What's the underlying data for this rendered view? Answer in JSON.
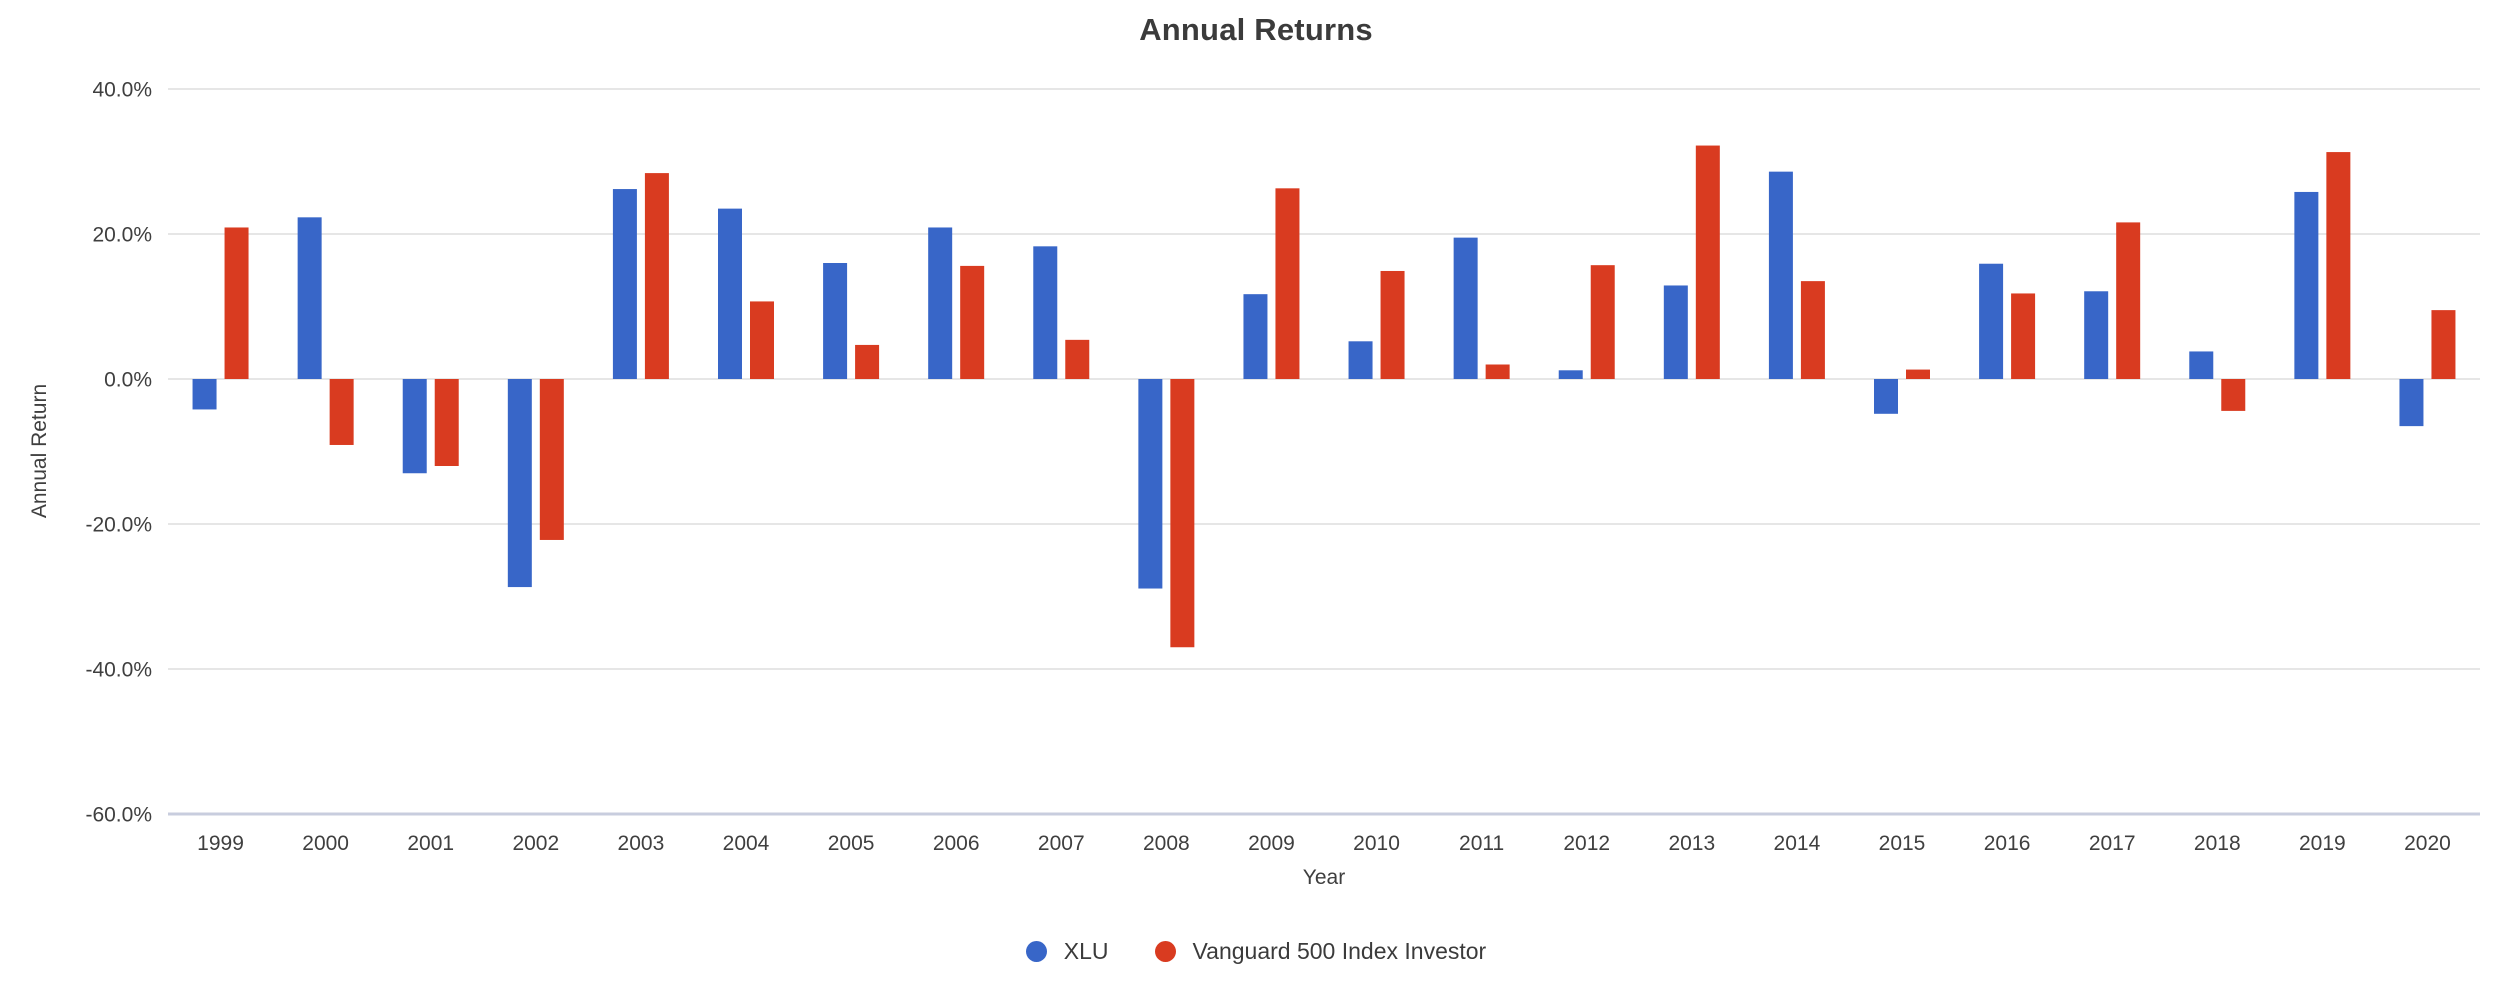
{
  "chart_data": {
    "type": "bar",
    "title": "Annual Returns",
    "xlabel": "Year",
    "ylabel": "Annual Return",
    "categories": [
      "1999",
      "2000",
      "2001",
      "2002",
      "2003",
      "2004",
      "2005",
      "2006",
      "2007",
      "2008",
      "2009",
      "2010",
      "2011",
      "2012",
      "2013",
      "2014",
      "2015",
      "2016",
      "2017",
      "2018",
      "2019",
      "2020"
    ],
    "series": [
      {
        "name": "XLU",
        "color": "#3866C8",
        "values": [
          -4.2,
          22.3,
          -13.0,
          -28.7,
          26.2,
          23.5,
          16.0,
          20.9,
          18.3,
          -28.9,
          11.7,
          5.2,
          19.5,
          1.2,
          12.9,
          28.6,
          -4.8,
          15.9,
          12.1,
          3.8,
          25.8,
          -6.5
        ]
      },
      {
        "name": "Vanguard 500 Index Investor",
        "color": "#D93B20",
        "values": [
          20.9,
          -9.1,
          -12.0,
          -22.2,
          28.4,
          10.7,
          4.7,
          15.6,
          5.4,
          -37.0,
          26.3,
          14.9,
          2.0,
          15.7,
          32.2,
          13.5,
          1.3,
          11.8,
          21.6,
          -4.4,
          31.3,
          9.5
        ]
      }
    ],
    "y_axis": {
      "min": -60,
      "max": 40,
      "unit": "%",
      "ticks": [
        {
          "value": 40,
          "label": "40.0%"
        },
        {
          "value": 20,
          "label": "20.0%"
        },
        {
          "value": 0,
          "label": "0.0%"
        },
        {
          "value": -20,
          "label": "-20.0%"
        },
        {
          "value": -40,
          "label": "-40.0%"
        },
        {
          "value": -60,
          "label": "-60.0%"
        }
      ]
    },
    "grid": true,
    "legend_position": "bottom",
    "colors": {
      "background": "#ffffff",
      "gridline": "#e6e6e6",
      "baseline": "#c8cdde",
      "tick_text": "#3f3f3f",
      "title_text": "#3b3b3b"
    }
  }
}
